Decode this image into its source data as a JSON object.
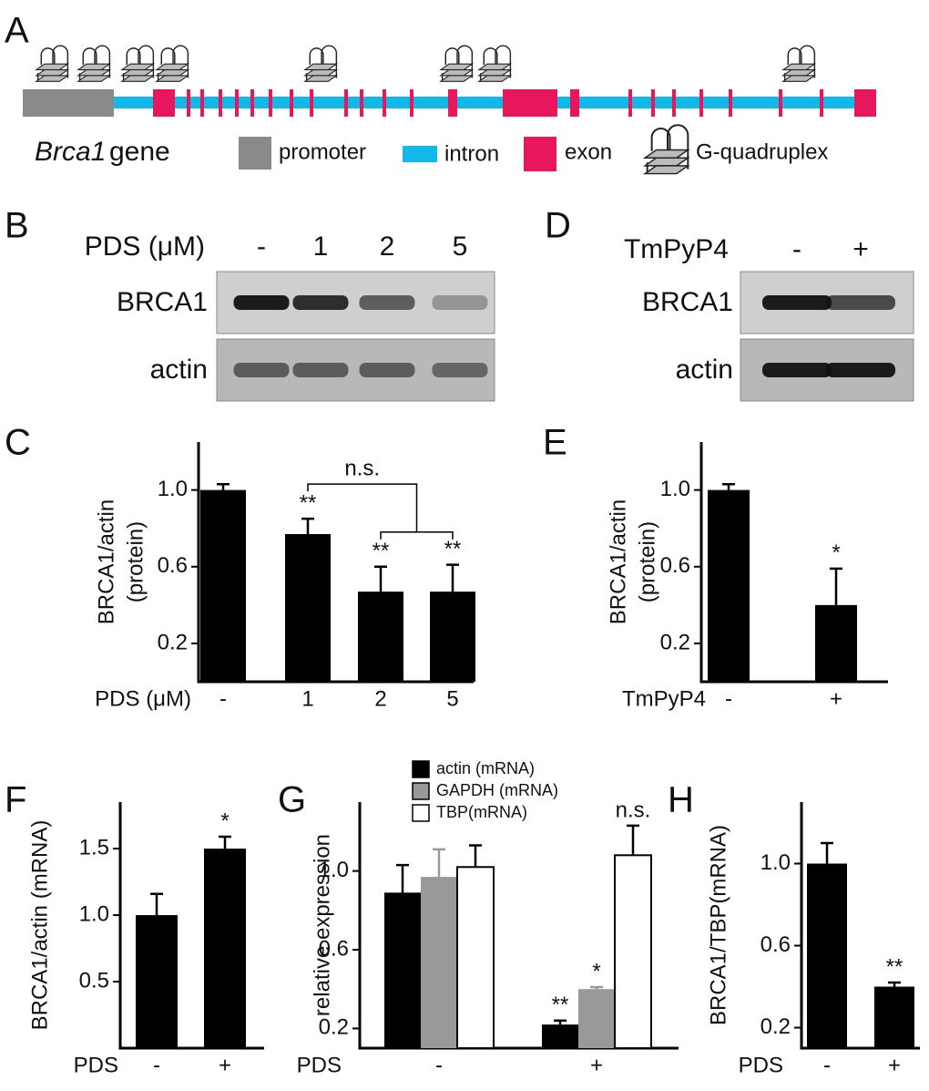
{
  "panel_A": {
    "label": "A",
    "gene_name": "Brca1",
    "gene_word": "gene",
    "legend": [
      "promoter",
      "intron",
      "exon",
      "G-quadruplex"
    ]
  },
  "blots": [
    {
      "panel": "B",
      "treatment": "PDS (μM)",
      "lanes": [
        "-",
        "1",
        "2",
        "5"
      ],
      "rows": [
        "BRCA1",
        "actin"
      ]
    },
    {
      "panel": "D",
      "treatment": "TmPyP4",
      "lanes": [
        "-",
        "+"
      ],
      "rows": [
        "BRCA1",
        "actin"
      ]
    }
  ],
  "chart_data": [
    {
      "panel": "C",
      "type": "bar",
      "y_label": [
        "BRCA1/actin",
        "(protein)"
      ],
      "x_label": "PDS (μM)",
      "categories": [
        "-",
        "1",
        "2",
        "5"
      ],
      "values": [
        1.0,
        0.77,
        0.47,
        0.47
      ],
      "errors": [
        0.03,
        0.08,
        0.13,
        0.14
      ],
      "significance": [
        null,
        "**",
        "**",
        "**"
      ],
      "bracket": "n.s.",
      "color": "#000000",
      "ylim": [
        0,
        1.25
      ],
      "yticks": [
        0.2,
        0.6,
        {
          "value": 1,
          "label": "1.0"
        }
      ]
    },
    {
      "panel": "E",
      "type": "bar",
      "y_label": [
        "BRCA1/actin",
        "(protein)"
      ],
      "x_label": "TmPyP4",
      "categories": [
        "-",
        "+"
      ],
      "values": [
        1.0,
        0.4
      ],
      "errors": [
        0.03,
        0.19
      ],
      "significance": [
        null,
        "*"
      ],
      "color": "#000000",
      "ylim": [
        0,
        1.25
      ],
      "yticks": [
        0.2,
        0.6,
        {
          "value": 1,
          "label": "1.0"
        }
      ]
    },
    {
      "panel": "F",
      "type": "bar",
      "y_label": [
        "BRCA1/actin (mRNA)"
      ],
      "x_label": "PDS",
      "categories": [
        "-",
        "+"
      ],
      "values": [
        1.0,
        1.5
      ],
      "errors": [
        0.16,
        0.09
      ],
      "significance": [
        null,
        "*"
      ],
      "color": "#000000",
      "ylim": [
        0,
        1.85
      ],
      "yticks": [
        0.5,
        {
          "value": 1,
          "label": "1.0"
        },
        1.5
      ]
    },
    {
      "panel": "G",
      "type": "bar",
      "y_label": [
        "relative expression"
      ],
      "x_label": "PDS",
      "categories": [
        "-",
        "+"
      ],
      "series": [
        {
          "name": "actin (mRNA)",
          "color": "#000000",
          "values": [
            0.89,
            0.22
          ],
          "errors": [
            0.14,
            0.02
          ],
          "significance": [
            null,
            "**"
          ]
        },
        {
          "name": "GAPDH (mRNA)",
          "color": "#999999",
          "values": [
            0.97,
            0.4
          ],
          "errors": [
            0.14,
            0.01
          ],
          "significance": [
            null,
            "*"
          ]
        },
        {
          "name": "TBP(mRNA)",
          "color": "#ffffff",
          "values": [
            1.02,
            1.08
          ],
          "errors": [
            0.11,
            0.15
          ],
          "significance": [
            null,
            "n.s."
          ]
        }
      ],
      "legend": "top-left",
      "ylim": [
        0.1,
        1.35
      ],
      "yticks": [
        0.2,
        0.6,
        {
          "value": 1,
          "label": "1.0"
        }
      ]
    },
    {
      "panel": "H",
      "type": "bar",
      "y_label": [
        "BRCA1/TBP(mRNA)"
      ],
      "x_label": "PDS",
      "categories": [
        "-",
        "+"
      ],
      "values": [
        1.0,
        0.4
      ],
      "errors": [
        0.1,
        0.02
      ],
      "significance": [
        null,
        "**"
      ],
      "color": "#000000",
      "ylim": [
        0.1,
        1.3
      ],
      "yticks": [
        0.2,
        0.6,
        {
          "value": 1,
          "label": "1.0"
        }
      ]
    }
  ]
}
